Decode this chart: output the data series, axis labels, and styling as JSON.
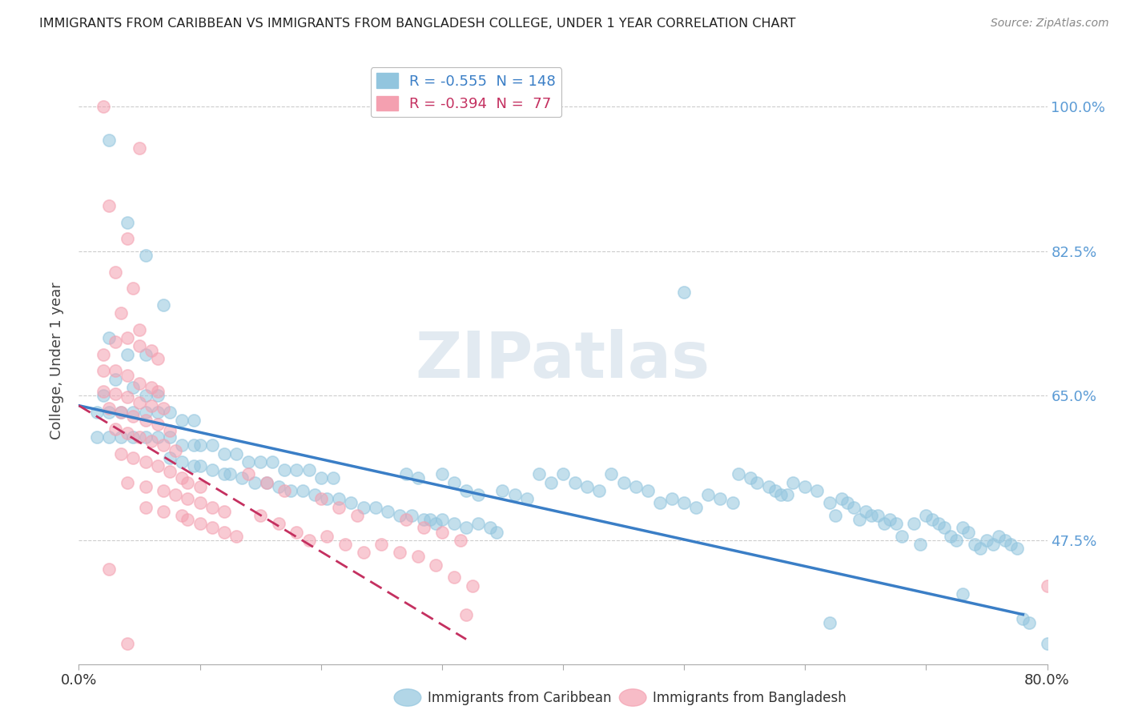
{
  "title": "IMMIGRANTS FROM CARIBBEAN VS IMMIGRANTS FROM BANGLADESH COLLEGE, UNDER 1 YEAR CORRELATION CHART",
  "source": "Source: ZipAtlas.com",
  "ylabel": "College, Under 1 year",
  "xmin": 0.0,
  "xmax": 0.8,
  "ymin": 0.325,
  "ymax": 1.06,
  "x_tick_labels": [
    "0.0%",
    "",
    "",
    "",
    "",
    "",
    "",
    "",
    "80.0%"
  ],
  "x_tick_values": [
    0.0,
    0.1,
    0.2,
    0.3,
    0.4,
    0.5,
    0.6,
    0.7,
    0.8
  ],
  "y_tick_labels": [
    "100.0%",
    "82.5%",
    "65.0%",
    "47.5%"
  ],
  "y_tick_values": [
    1.0,
    0.825,
    0.65,
    0.475
  ],
  "legend_entries": [
    {
      "label": "R = -0.555  N = 148",
      "color": "#92C5DE"
    },
    {
      "label": "R = -0.394  N =  77",
      "color": "#F4A0B0"
    }
  ],
  "series_caribbean": {
    "color": "#92C5DE",
    "trend_x0": 0.0,
    "trend_y0": 0.638,
    "trend_x1": 0.78,
    "trend_y1": 0.385
  },
  "series_bangladesh": {
    "color": "#F4A0B0",
    "trend_x0": 0.0,
    "trend_y0": 0.638,
    "trend_x1": 0.32,
    "trend_y1": 0.355
  },
  "scatter_caribbean": [
    [
      0.025,
      0.96
    ],
    [
      0.04,
      0.86
    ],
    [
      0.025,
      0.72
    ],
    [
      0.04,
      0.7
    ],
    [
      0.055,
      0.82
    ],
    [
      0.07,
      0.76
    ],
    [
      0.055,
      0.7
    ],
    [
      0.02,
      0.65
    ],
    [
      0.03,
      0.67
    ],
    [
      0.045,
      0.66
    ],
    [
      0.055,
      0.65
    ],
    [
      0.065,
      0.65
    ],
    [
      0.015,
      0.63
    ],
    [
      0.025,
      0.63
    ],
    [
      0.035,
      0.63
    ],
    [
      0.045,
      0.63
    ],
    [
      0.055,
      0.63
    ],
    [
      0.065,
      0.63
    ],
    [
      0.075,
      0.63
    ],
    [
      0.085,
      0.62
    ],
    [
      0.095,
      0.62
    ],
    [
      0.015,
      0.6
    ],
    [
      0.025,
      0.6
    ],
    [
      0.035,
      0.6
    ],
    [
      0.045,
      0.6
    ],
    [
      0.055,
      0.6
    ],
    [
      0.065,
      0.6
    ],
    [
      0.075,
      0.6
    ],
    [
      0.085,
      0.59
    ],
    [
      0.095,
      0.59
    ],
    [
      0.1,
      0.59
    ],
    [
      0.11,
      0.59
    ],
    [
      0.12,
      0.58
    ],
    [
      0.13,
      0.58
    ],
    [
      0.14,
      0.57
    ],
    [
      0.15,
      0.57
    ],
    [
      0.16,
      0.57
    ],
    [
      0.17,
      0.56
    ],
    [
      0.18,
      0.56
    ],
    [
      0.19,
      0.56
    ],
    [
      0.2,
      0.55
    ],
    [
      0.21,
      0.55
    ],
    [
      0.075,
      0.575
    ],
    [
      0.085,
      0.57
    ],
    [
      0.095,
      0.565
    ],
    [
      0.1,
      0.565
    ],
    [
      0.11,
      0.56
    ],
    [
      0.12,
      0.555
    ],
    [
      0.125,
      0.555
    ],
    [
      0.135,
      0.55
    ],
    [
      0.145,
      0.545
    ],
    [
      0.155,
      0.545
    ],
    [
      0.165,
      0.54
    ],
    [
      0.175,
      0.535
    ],
    [
      0.185,
      0.535
    ],
    [
      0.195,
      0.53
    ],
    [
      0.205,
      0.525
    ],
    [
      0.215,
      0.525
    ],
    [
      0.225,
      0.52
    ],
    [
      0.235,
      0.515
    ],
    [
      0.245,
      0.515
    ],
    [
      0.255,
      0.51
    ],
    [
      0.265,
      0.505
    ],
    [
      0.27,
      0.555
    ],
    [
      0.28,
      0.55
    ],
    [
      0.29,
      0.5
    ],
    [
      0.3,
      0.555
    ],
    [
      0.31,
      0.545
    ],
    [
      0.32,
      0.535
    ],
    [
      0.33,
      0.53
    ],
    [
      0.275,
      0.505
    ],
    [
      0.285,
      0.5
    ],
    [
      0.295,
      0.495
    ],
    [
      0.3,
      0.5
    ],
    [
      0.31,
      0.495
    ],
    [
      0.32,
      0.49
    ],
    [
      0.33,
      0.495
    ],
    [
      0.34,
      0.49
    ],
    [
      0.345,
      0.485
    ],
    [
      0.35,
      0.535
    ],
    [
      0.36,
      0.53
    ],
    [
      0.37,
      0.525
    ],
    [
      0.38,
      0.555
    ],
    [
      0.39,
      0.545
    ],
    [
      0.4,
      0.555
    ],
    [
      0.41,
      0.545
    ],
    [
      0.42,
      0.54
    ],
    [
      0.43,
      0.535
    ],
    [
      0.44,
      0.555
    ],
    [
      0.45,
      0.545
    ],
    [
      0.46,
      0.54
    ],
    [
      0.47,
      0.535
    ],
    [
      0.48,
      0.52
    ],
    [
      0.49,
      0.525
    ],
    [
      0.5,
      0.775
    ],
    [
      0.5,
      0.52
    ],
    [
      0.51,
      0.515
    ],
    [
      0.52,
      0.53
    ],
    [
      0.53,
      0.525
    ],
    [
      0.54,
      0.52
    ],
    [
      0.545,
      0.555
    ],
    [
      0.555,
      0.55
    ],
    [
      0.56,
      0.545
    ],
    [
      0.57,
      0.54
    ],
    [
      0.575,
      0.535
    ],
    [
      0.58,
      0.53
    ],
    [
      0.585,
      0.53
    ],
    [
      0.59,
      0.545
    ],
    [
      0.6,
      0.54
    ],
    [
      0.61,
      0.535
    ],
    [
      0.62,
      0.52
    ],
    [
      0.625,
      0.505
    ],
    [
      0.63,
      0.525
    ],
    [
      0.635,
      0.52
    ],
    [
      0.64,
      0.515
    ],
    [
      0.645,
      0.5
    ],
    [
      0.65,
      0.51
    ],
    [
      0.655,
      0.505
    ],
    [
      0.66,
      0.505
    ],
    [
      0.665,
      0.495
    ],
    [
      0.67,
      0.5
    ],
    [
      0.675,
      0.495
    ],
    [
      0.68,
      0.48
    ],
    [
      0.69,
      0.495
    ],
    [
      0.695,
      0.47
    ],
    [
      0.7,
      0.505
    ],
    [
      0.705,
      0.5
    ],
    [
      0.71,
      0.495
    ],
    [
      0.715,
      0.49
    ],
    [
      0.72,
      0.48
    ],
    [
      0.725,
      0.475
    ],
    [
      0.73,
      0.49
    ],
    [
      0.735,
      0.485
    ],
    [
      0.74,
      0.47
    ],
    [
      0.745,
      0.465
    ],
    [
      0.75,
      0.475
    ],
    [
      0.755,
      0.47
    ],
    [
      0.76,
      0.48
    ],
    [
      0.765,
      0.475
    ],
    [
      0.77,
      0.47
    ],
    [
      0.775,
      0.465
    ],
    [
      0.78,
      0.38
    ],
    [
      0.785,
      0.375
    ],
    [
      0.62,
      0.375
    ],
    [
      0.73,
      0.41
    ],
    [
      0.8,
      0.35
    ]
  ],
  "scatter_bangladesh": [
    [
      0.02,
      1.0
    ],
    [
      0.05,
      0.95
    ],
    [
      0.025,
      0.88
    ],
    [
      0.04,
      0.84
    ],
    [
      0.03,
      0.8
    ],
    [
      0.045,
      0.78
    ],
    [
      0.035,
      0.75
    ],
    [
      0.05,
      0.73
    ],
    [
      0.02,
      0.7
    ],
    [
      0.03,
      0.715
    ],
    [
      0.04,
      0.72
    ],
    [
      0.05,
      0.71
    ],
    [
      0.06,
      0.705
    ],
    [
      0.065,
      0.695
    ],
    [
      0.02,
      0.68
    ],
    [
      0.03,
      0.68
    ],
    [
      0.04,
      0.675
    ],
    [
      0.05,
      0.665
    ],
    [
      0.06,
      0.66
    ],
    [
      0.065,
      0.655
    ],
    [
      0.02,
      0.655
    ],
    [
      0.03,
      0.652
    ],
    [
      0.04,
      0.648
    ],
    [
      0.05,
      0.642
    ],
    [
      0.06,
      0.638
    ],
    [
      0.07,
      0.635
    ],
    [
      0.025,
      0.635
    ],
    [
      0.035,
      0.63
    ],
    [
      0.045,
      0.625
    ],
    [
      0.055,
      0.62
    ],
    [
      0.065,
      0.615
    ],
    [
      0.075,
      0.608
    ],
    [
      0.03,
      0.61
    ],
    [
      0.04,
      0.605
    ],
    [
      0.05,
      0.6
    ],
    [
      0.06,
      0.595
    ],
    [
      0.07,
      0.59
    ],
    [
      0.08,
      0.583
    ],
    [
      0.035,
      0.58
    ],
    [
      0.045,
      0.575
    ],
    [
      0.055,
      0.57
    ],
    [
      0.065,
      0.565
    ],
    [
      0.075,
      0.558
    ],
    [
      0.085,
      0.55
    ],
    [
      0.09,
      0.545
    ],
    [
      0.1,
      0.54
    ],
    [
      0.04,
      0.545
    ],
    [
      0.055,
      0.54
    ],
    [
      0.07,
      0.535
    ],
    [
      0.08,
      0.53
    ],
    [
      0.09,
      0.525
    ],
    [
      0.1,
      0.52
    ],
    [
      0.11,
      0.515
    ],
    [
      0.12,
      0.51
    ],
    [
      0.055,
      0.515
    ],
    [
      0.07,
      0.51
    ],
    [
      0.085,
      0.505
    ],
    [
      0.09,
      0.5
    ],
    [
      0.1,
      0.495
    ],
    [
      0.11,
      0.49
    ],
    [
      0.12,
      0.485
    ],
    [
      0.13,
      0.48
    ],
    [
      0.14,
      0.555
    ],
    [
      0.155,
      0.545
    ],
    [
      0.17,
      0.535
    ],
    [
      0.15,
      0.505
    ],
    [
      0.165,
      0.495
    ],
    [
      0.18,
      0.485
    ],
    [
      0.19,
      0.475
    ],
    [
      0.2,
      0.525
    ],
    [
      0.215,
      0.515
    ],
    [
      0.23,
      0.505
    ],
    [
      0.205,
      0.48
    ],
    [
      0.22,
      0.47
    ],
    [
      0.235,
      0.46
    ],
    [
      0.25,
      0.47
    ],
    [
      0.265,
      0.46
    ],
    [
      0.27,
      0.5
    ],
    [
      0.285,
      0.49
    ],
    [
      0.28,
      0.455
    ],
    [
      0.295,
      0.445
    ],
    [
      0.3,
      0.485
    ],
    [
      0.315,
      0.475
    ],
    [
      0.31,
      0.43
    ],
    [
      0.325,
      0.42
    ],
    [
      0.32,
      0.385
    ],
    [
      0.025,
      0.44
    ],
    [
      0.04,
      0.35
    ],
    [
      0.8,
      0.42
    ]
  ]
}
